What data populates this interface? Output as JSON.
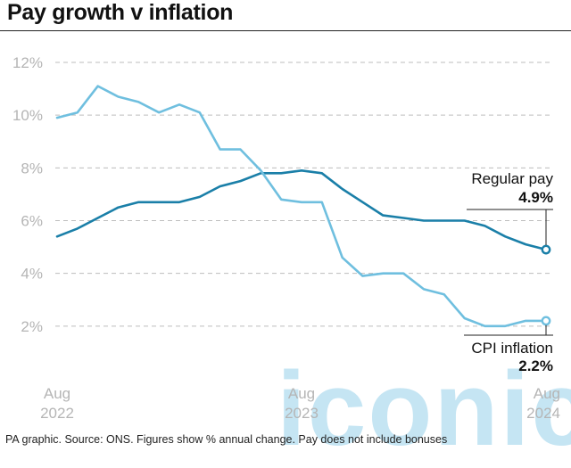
{
  "header": {
    "title": "Pay growth v inflation"
  },
  "footer": {
    "source": "PA graphic. Source: ONS. Figures show % annual change. Pay does not include bonuses"
  },
  "watermark": {
    "text": "iconic"
  },
  "colors": {
    "regular_pay": "#1a7fa8",
    "cpi": "#6fbfdf",
    "grid": "#bdbdbd",
    "axis_text": "#b5b5b5"
  },
  "chart_data": {
    "type": "line",
    "title": "Pay growth v inflation",
    "xlabel": "",
    "ylabel": "",
    "ylim": [
      0,
      12
    ],
    "y_ticks": [
      2,
      4,
      6,
      8,
      10,
      12
    ],
    "y_tick_labels": [
      "2%",
      "4%",
      "6%",
      "8%",
      "10%",
      "12%"
    ],
    "x_range": [
      "2022-08",
      "2024-08"
    ],
    "x_tick_labels": [
      {
        "x": "2022-08",
        "month": "Aug",
        "year": "2022"
      },
      {
        "x": "2023-08",
        "month": "Aug",
        "year": "2023"
      },
      {
        "x": "2024-08",
        "month": "Aug",
        "year": "2024"
      }
    ],
    "grid": "horizontal-dashed",
    "x": [
      "2022-08",
      "2022-09",
      "2022-10",
      "2022-11",
      "2022-12",
      "2023-01",
      "2023-02",
      "2023-03",
      "2023-04",
      "2023-05",
      "2023-06",
      "2023-07",
      "2023-08",
      "2023-09",
      "2023-10",
      "2023-11",
      "2023-12",
      "2024-01",
      "2024-02",
      "2024-03",
      "2024-04",
      "2024-05",
      "2024-06",
      "2024-07",
      "2024-08"
    ],
    "series": [
      {
        "name": "Regular pay",
        "end_label": "4.9%",
        "values": [
          5.4,
          5.7,
          6.1,
          6.5,
          6.7,
          6.7,
          6.7,
          6.9,
          7.3,
          7.5,
          7.8,
          7.8,
          7.9,
          7.8,
          7.2,
          6.7,
          6.2,
          6.1,
          6.0,
          6.0,
          6.0,
          5.8,
          5.4,
          5.1,
          4.9
        ]
      },
      {
        "name": "CPI inflation",
        "end_label": "2.2%",
        "values": [
          9.9,
          10.1,
          11.1,
          10.7,
          10.5,
          10.1,
          10.4,
          10.1,
          8.7,
          8.7,
          7.9,
          6.8,
          6.7,
          6.7,
          4.6,
          3.9,
          4.0,
          4.0,
          3.4,
          3.2,
          2.3,
          2.0,
          2.0,
          2.2,
          2.2
        ]
      }
    ]
  }
}
